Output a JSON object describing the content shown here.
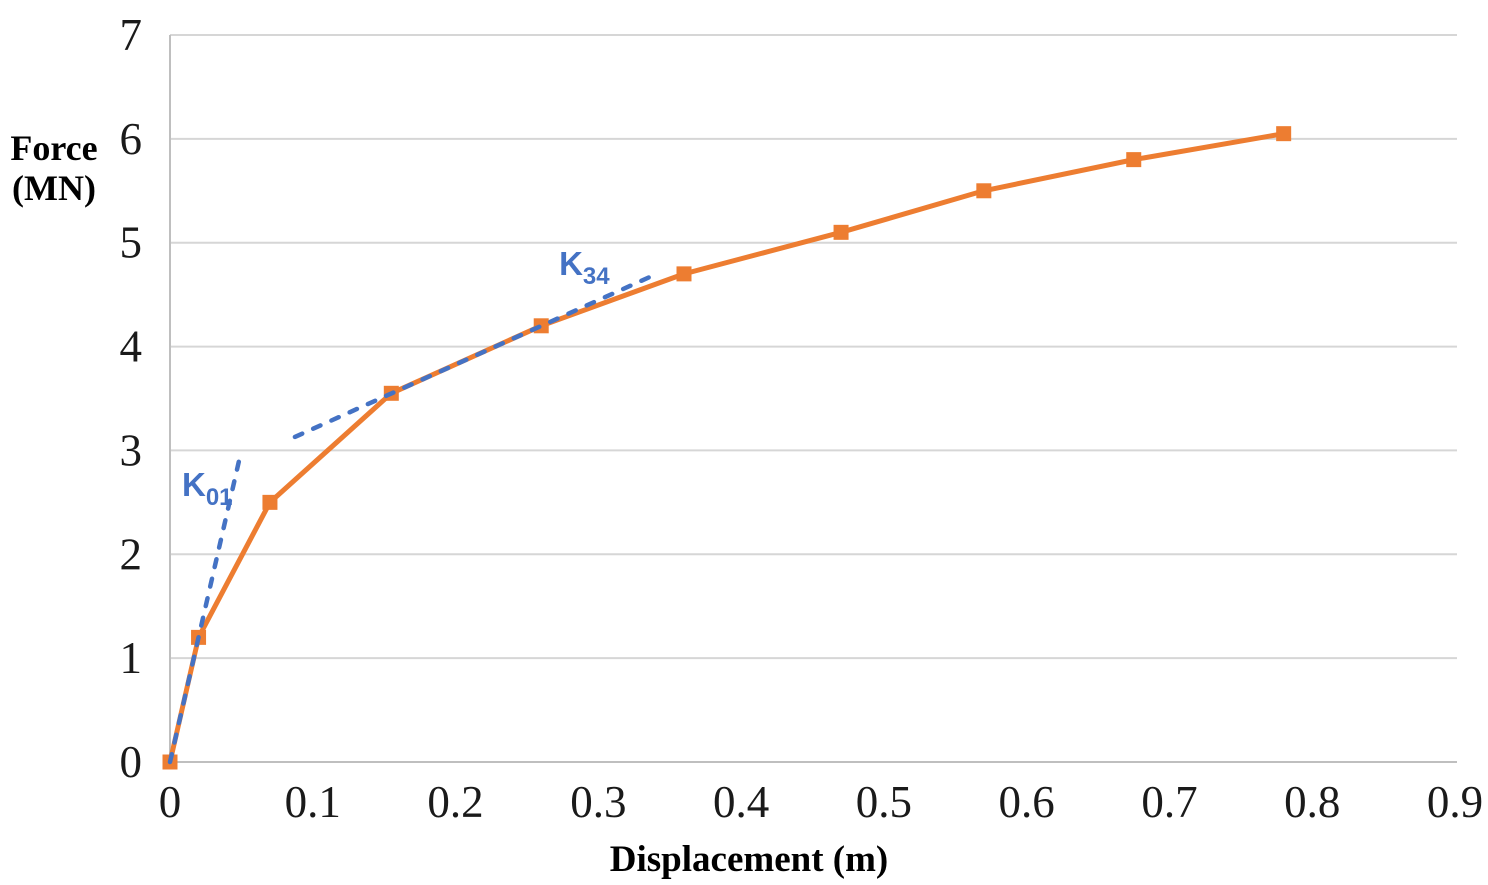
{
  "chart_data": {
    "type": "line",
    "title": "",
    "xlabel": "Displacement (m)",
    "ylabel": "Force (MN)",
    "ylabel_lines": [
      "Force",
      "(MN)"
    ],
    "xlim": [
      0,
      0.9
    ],
    "ylim": [
      0,
      7
    ],
    "x_tick_labels": [
      "0",
      "0.1",
      "0.2",
      "0.3",
      "0.4",
      "0.5",
      "0.6",
      "0.7",
      "0.8",
      "0.9"
    ],
    "y_tick_labels": [
      "0",
      "1",
      "2",
      "3",
      "4",
      "5",
      "6",
      "7"
    ],
    "grid": "horizontal-only",
    "legend": "none",
    "colors": {
      "series": "#ED7D31",
      "annotation": "#4472C4",
      "grid": "#D6D6D6",
      "axis": "#BFBFBF",
      "tick_text": "#1A1A1A",
      "title_text": "#000000"
    },
    "series": [
      {
        "name": "force-displacement-curve",
        "marker": "square",
        "points": [
          [
            0,
            0
          ],
          [
            0.02,
            1.2
          ],
          [
            0.07,
            2.5
          ],
          [
            0.155,
            3.55
          ],
          [
            0.26,
            4.2
          ],
          [
            0.36,
            4.7
          ],
          [
            0.47,
            5.1
          ],
          [
            0.57,
            5.5
          ],
          [
            0.675,
            5.8
          ],
          [
            0.78,
            6.05
          ]
        ]
      }
    ],
    "annotations": [
      {
        "name": "K01-stiffness-line",
        "style": "dashed",
        "from": [
          0,
          0
        ],
        "to": [
          0.05,
          3.0
        ],
        "label": {
          "main": "K",
          "sub": "01",
          "anchor": [
            0.0084,
            2.56
          ]
        }
      },
      {
        "name": "K34-stiffness-line",
        "style": "dashed",
        "from": [
          0.0875,
          3.13
        ],
        "to": [
          0.3425,
          4.71
        ],
        "label": {
          "main": "K",
          "sub": "34",
          "anchor": [
            0.2725,
            4.69
          ]
        }
      }
    ]
  }
}
